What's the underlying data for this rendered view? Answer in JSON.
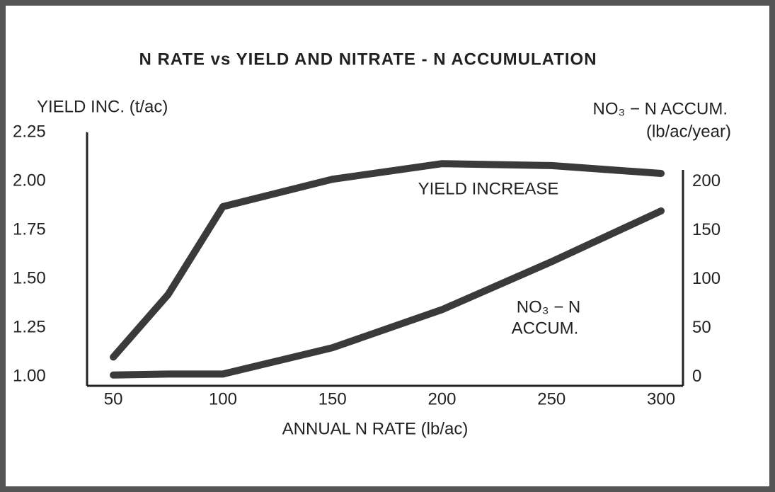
{
  "chart_data": {
    "type": "line",
    "title": "N RATE vs YIELD AND NITRATE - N ACCUMULATION",
    "ylabel": "YIELD INC. (t/ac)",
    "y2label": [
      "NO₃ − N ACCUM.",
      "(lb/ac/year)"
    ],
    "xlabel": "ANNUAL N RATE (lb/ac)",
    "x": [
      50,
      75,
      100,
      150,
      200,
      250,
      300
    ],
    "series": [
      {
        "name": "YIELD INCREASE",
        "color": "#3a3a3a",
        "values": [
          1.1,
          1.42,
          1.87,
          2.01,
          2.09,
          2.08,
          2.04
        ]
      },
      {
        "name": "NO₃ − N ACCUM.",
        "color": "#3a3a3a",
        "axis": "y2",
        "values": [
          2,
          3,
          3,
          30,
          69,
          118,
          170
        ]
      }
    ],
    "annotations": [
      [
        "YIELD INCREASE"
      ],
      [
        "NO₃ − N",
        "ACCUM."
      ]
    ],
    "xlim": [
      38,
      310
    ],
    "xticks": [
      50,
      100,
      150,
      200,
      250,
      300
    ],
    "ylim": [
      0.953,
      2.25
    ],
    "yticks": [
      {
        "value": 1,
        "label": "1.00"
      },
      1.25,
      {
        "value": 1.5,
        "label": "1.50"
      },
      1.75,
      {
        "value": 2,
        "label": "2.00"
      },
      2.25
    ],
    "y2lim": [
      -9,
      212
    ],
    "y2ticks": [
      0,
      50,
      100,
      150,
      200
    ],
    "grid": false
  }
}
